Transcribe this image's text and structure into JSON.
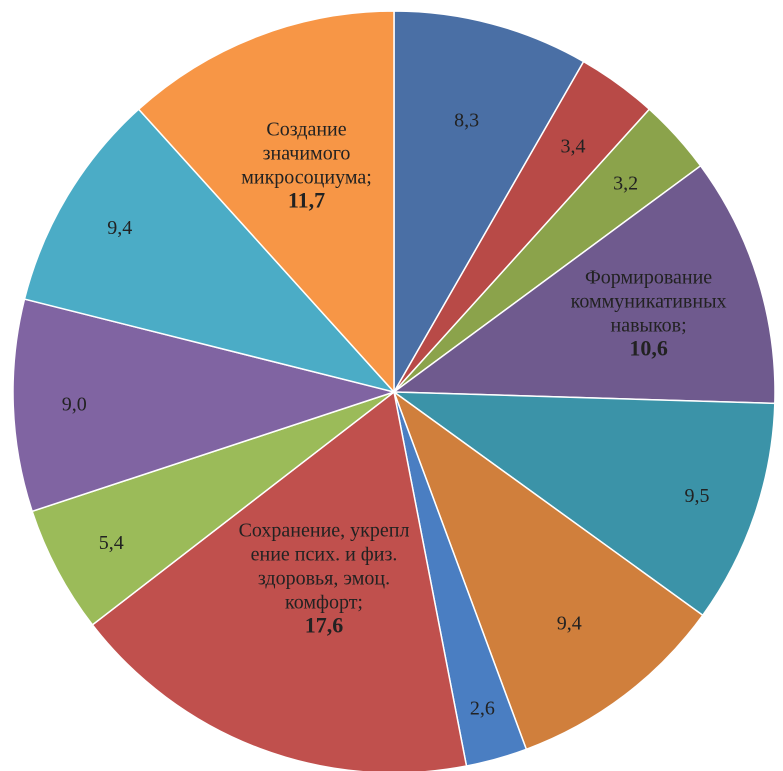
{
  "chart_data": {
    "type": "pie",
    "title": "",
    "start_angle_deg": 0,
    "direction": "clockwise",
    "slices": [
      {
        "value": 8.3,
        "value_label": "8,3",
        "name_lines": [],
        "color": "#4A6FA5"
      },
      {
        "value": 3.4,
        "value_label": "3,4",
        "name_lines": [],
        "color": "#B84A47"
      },
      {
        "value": 3.2,
        "value_label": "3,2",
        "name_lines": [],
        "color": "#8BA34B"
      },
      {
        "value": 10.6,
        "value_label": "10,6",
        "name_lines": [
          "Формирование",
          "коммуникативных",
          "навыков;"
        ],
        "color": "#6F5A8E"
      },
      {
        "value": 9.5,
        "value_label": "9,5",
        "name_lines": [],
        "color": "#3B93A8"
      },
      {
        "value": 9.4,
        "value_label": "9,4",
        "name_lines": [],
        "color": "#D07F3C"
      },
      {
        "value": 2.6,
        "value_label": "2,6",
        "name_lines": [],
        "color": "#4A7EC2"
      },
      {
        "value": 17.6,
        "value_label": "17,6",
        "name_lines": [
          "Сохранение, укрепл",
          "ение псих. и физ.",
          "здоровья, эмоц.",
          "комфорт;"
        ],
        "color": "#C0504D"
      },
      {
        "value": 5.4,
        "value_label": "5,4",
        "name_lines": [],
        "color": "#9BBB59"
      },
      {
        "value": 9.0,
        "value_label": "9,0",
        "name_lines": [],
        "color": "#8064A2"
      },
      {
        "value": 9.4,
        "value_label": "9,4",
        "name_lines": [],
        "color": "#4BACC6"
      },
      {
        "value": 11.7,
        "value_label": "11,7",
        "name_lines": [
          "Создание",
          "значимого",
          "микросоциума;"
        ],
        "color": "#F79646"
      }
    ]
  }
}
